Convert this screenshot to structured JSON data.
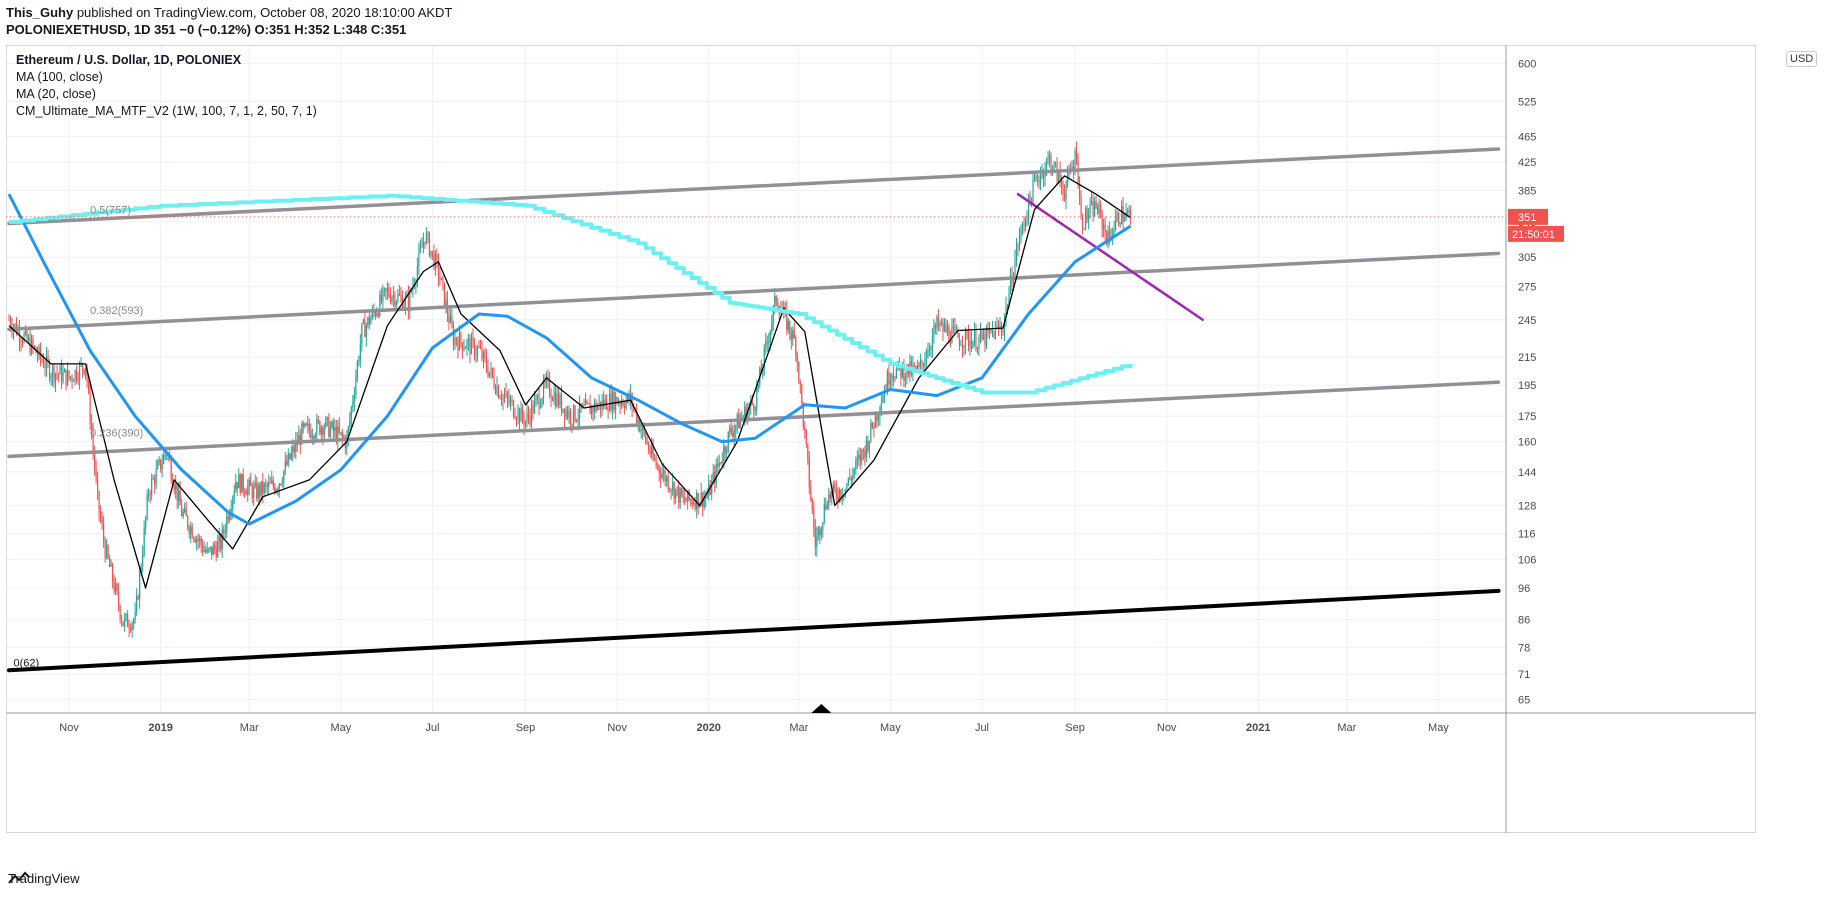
{
  "header": {
    "author": "This_Guhy",
    "published": "published on TradingView.com, October 08, 2020 18:10:00 AKDT",
    "symbol_line": "POLONIEXETHUSD, 1D",
    "ohlc": "351 −0 (−0.12%) O:351 H:352 L:348 C:351"
  },
  "legend": {
    "title": "Ethereum / U.S. Dollar, 1D, POLONIEX",
    "items": [
      "MA (100, close)",
      "MA (20, close)",
      "CM_Ultimate_MA_MTF_V2 (1W, 100, 7, 1, 2, 50, 7, 1)"
    ]
  },
  "currency_badge": "USD",
  "price_tag": {
    "value": "351",
    "countdown": "21:50:01",
    "color": "#ef5350"
  },
  "footer": {
    "brand": "TradingView"
  },
  "colors": {
    "up": "#26a69a",
    "down": "#ef5350",
    "ma100": "#2196f3",
    "ma20": "#000000",
    "mtf": "#6ff0f0",
    "channel": "#909096",
    "support": "#000000",
    "trendline": "#9c27b0"
  },
  "chart_data": {
    "type": "candlestick",
    "symbol": "ETHUSD",
    "interval": "1D",
    "exchange": "POLONIEX",
    "y_scale": "log",
    "ylim": [
      62,
      640
    ],
    "y_ticks": [
      65,
      71,
      78,
      86,
      96,
      106,
      116,
      128,
      144,
      160,
      175,
      195,
      215,
      245,
      275,
      305,
      345,
      385,
      425,
      465,
      525,
      600
    ],
    "x_ticks": [
      "Nov",
      "2019",
      "Mar",
      "May",
      "Jul",
      "Sep",
      "Nov",
      "2020",
      "Mar",
      "May",
      "Jul",
      "Sep",
      "Nov",
      "2021",
      "Mar",
      "May"
    ],
    "last_price": 351,
    "close_series": [
      {
        "date": "2018-09-22",
        "close": 245
      },
      {
        "date": "2018-10-05",
        "close": 226
      },
      {
        "date": "2018-10-20",
        "close": 205
      },
      {
        "date": "2018-11-01",
        "close": 200
      },
      {
        "date": "2018-11-12",
        "close": 210
      },
      {
        "date": "2018-11-20",
        "close": 130
      },
      {
        "date": "2018-11-25",
        "close": 110
      },
      {
        "date": "2018-12-07",
        "close": 85
      },
      {
        "date": "2018-12-15",
        "close": 86
      },
      {
        "date": "2018-12-24",
        "close": 135
      },
      {
        "date": "2019-01-05",
        "close": 155
      },
      {
        "date": "2019-01-15",
        "close": 125
      },
      {
        "date": "2019-02-01",
        "close": 108
      },
      {
        "date": "2019-02-10",
        "close": 112
      },
      {
        "date": "2019-02-20",
        "close": 140
      },
      {
        "date": "2019-03-05",
        "close": 134
      },
      {
        "date": "2019-03-20",
        "close": 138
      },
      {
        "date": "2019-04-05",
        "close": 165
      },
      {
        "date": "2019-04-20",
        "close": 170
      },
      {
        "date": "2019-05-05",
        "close": 160
      },
      {
        "date": "2019-05-15",
        "close": 235
      },
      {
        "date": "2019-06-01",
        "close": 270
      },
      {
        "date": "2019-06-15",
        "close": 260
      },
      {
        "date": "2019-06-26",
        "close": 330
      },
      {
        "date": "2019-07-05",
        "close": 290
      },
      {
        "date": "2019-07-15",
        "close": 230
      },
      {
        "date": "2019-08-01",
        "close": 220
      },
      {
        "date": "2019-08-15",
        "close": 190
      },
      {
        "date": "2019-09-01",
        "close": 172
      },
      {
        "date": "2019-09-15",
        "close": 195
      },
      {
        "date": "2019-10-01",
        "close": 175
      },
      {
        "date": "2019-10-15",
        "close": 180
      },
      {
        "date": "2019-10-28",
        "close": 185
      },
      {
        "date": "2019-11-10",
        "close": 185
      },
      {
        "date": "2019-11-25",
        "close": 150
      },
      {
        "date": "2019-12-15",
        "close": 130
      },
      {
        "date": "2019-12-31",
        "close": 132
      },
      {
        "date": "2020-01-15",
        "close": 165
      },
      {
        "date": "2020-02-01",
        "close": 185
      },
      {
        "date": "2020-02-15",
        "close": 265
      },
      {
        "date": "2020-02-28",
        "close": 225
      },
      {
        "date": "2020-03-12",
        "close": 112
      },
      {
        "date": "2020-03-20",
        "close": 132
      },
      {
        "date": "2020-04-01",
        "close": 136
      },
      {
        "date": "2020-04-15",
        "close": 158
      },
      {
        "date": "2020-05-01",
        "close": 205
      },
      {
        "date": "2020-05-20",
        "close": 205
      },
      {
        "date": "2020-06-01",
        "close": 240
      },
      {
        "date": "2020-06-15",
        "close": 230
      },
      {
        "date": "2020-07-01",
        "close": 228
      },
      {
        "date": "2020-07-15",
        "close": 240
      },
      {
        "date": "2020-07-25",
        "close": 320
      },
      {
        "date": "2020-08-05",
        "close": 395
      },
      {
        "date": "2020-08-15",
        "close": 430
      },
      {
        "date": "2020-08-25",
        "close": 385
      },
      {
        "date": "2020-09-02",
        "close": 440
      },
      {
        "date": "2020-09-05",
        "close": 345
      },
      {
        "date": "2020-09-15",
        "close": 365
      },
      {
        "date": "2020-09-23",
        "close": 325
      },
      {
        "date": "2020-10-01",
        "close": 355
      },
      {
        "date": "2020-10-08",
        "close": 351
      }
    ],
    "series": [
      {
        "name": "MA (20, close)",
        "color": "#000000",
        "points": [
          {
            "date": "2018-09-22",
            "close": 240
          },
          {
            "date": "2018-10-20",
            "close": 210
          },
          {
            "date": "2018-11-12",
            "close": 210
          },
          {
            "date": "2018-12-01",
            "close": 140
          },
          {
            "date": "2018-12-22",
            "close": 96
          },
          {
            "date": "2019-01-10",
            "close": 140
          },
          {
            "date": "2019-02-01",
            "close": 122
          },
          {
            "date": "2019-02-18",
            "close": 110
          },
          {
            "date": "2019-03-10",
            "close": 132
          },
          {
            "date": "2019-04-10",
            "close": 140
          },
          {
            "date": "2019-05-05",
            "close": 160
          },
          {
            "date": "2019-06-01",
            "close": 240
          },
          {
            "date": "2019-06-25",
            "close": 290
          },
          {
            "date": "2019-07-05",
            "close": 300
          },
          {
            "date": "2019-07-20",
            "close": 250
          },
          {
            "date": "2019-08-15",
            "close": 220
          },
          {
            "date": "2019-09-01",
            "close": 182
          },
          {
            "date": "2019-09-15",
            "close": 200
          },
          {
            "date": "2019-10-10",
            "close": 180
          },
          {
            "date": "2019-11-10",
            "close": 185
          },
          {
            "date": "2019-12-01",
            "close": 148
          },
          {
            "date": "2019-12-26",
            "close": 128
          },
          {
            "date": "2020-01-20",
            "close": 160
          },
          {
            "date": "2020-02-20",
            "close": 255
          },
          {
            "date": "2020-03-05",
            "close": 235
          },
          {
            "date": "2020-03-25",
            "close": 128
          },
          {
            "date": "2020-04-20",
            "close": 150
          },
          {
            "date": "2020-05-20",
            "close": 200
          },
          {
            "date": "2020-06-15",
            "close": 236
          },
          {
            "date": "2020-07-15",
            "close": 238
          },
          {
            "date": "2020-08-05",
            "close": 360
          },
          {
            "date": "2020-08-25",
            "close": 405
          },
          {
            "date": "2020-09-15",
            "close": 380
          },
          {
            "date": "2020-10-08",
            "close": 350
          }
        ]
      },
      {
        "name": "MA (100, close)",
        "color": "#2196f3",
        "points": [
          {
            "date": "2018-09-22",
            "close": 380
          },
          {
            "date": "2018-10-15",
            "close": 300
          },
          {
            "date": "2018-11-15",
            "close": 220
          },
          {
            "date": "2018-12-15",
            "close": 175
          },
          {
            "date": "2019-01-15",
            "close": 145
          },
          {
            "date": "2019-02-15",
            "close": 125
          },
          {
            "date": "2019-03-01",
            "close": 120
          },
          {
            "date": "2019-04-01",
            "close": 130
          },
          {
            "date": "2019-05-01",
            "close": 145
          },
          {
            "date": "2019-06-01",
            "close": 175
          },
          {
            "date": "2019-07-01",
            "close": 222
          },
          {
            "date": "2019-08-01",
            "close": 250
          },
          {
            "date": "2019-08-20",
            "close": 248
          },
          {
            "date": "2019-09-15",
            "close": 230
          },
          {
            "date": "2019-10-15",
            "close": 200
          },
          {
            "date": "2019-11-15",
            "close": 185
          },
          {
            "date": "2019-12-15",
            "close": 170
          },
          {
            "date": "2020-01-10",
            "close": 160
          },
          {
            "date": "2020-02-01",
            "close": 162
          },
          {
            "date": "2020-03-05",
            "close": 182
          },
          {
            "date": "2020-04-01",
            "close": 180
          },
          {
            "date": "2020-05-01",
            "close": 192
          },
          {
            "date": "2020-06-01",
            "close": 188
          },
          {
            "date": "2020-07-01",
            "close": 200
          },
          {
            "date": "2020-08-01",
            "close": 250
          },
          {
            "date": "2020-09-01",
            "close": 300
          },
          {
            "date": "2020-10-08",
            "close": 340
          }
        ]
      },
      {
        "name": "CM_Ultimate_MA_MTF_V2",
        "color": "#6ff0f0",
        "points": [
          {
            "date": "2018-09-22",
            "close": 345
          },
          {
            "date": "2019-01-01",
            "close": 365
          },
          {
            "date": "2019-06-01",
            "close": 378
          },
          {
            "date": "2019-09-01",
            "close": 365
          },
          {
            "date": "2019-11-15",
            "close": 320
          },
          {
            "date": "2020-01-15",
            "close": 260
          },
          {
            "date": "2020-03-01",
            "close": 250
          },
          {
            "date": "2020-05-01",
            "close": 210
          },
          {
            "date": "2020-07-01",
            "close": 190
          },
          {
            "date": "2020-08-01",
            "close": 190
          },
          {
            "date": "2020-10-08",
            "close": 210
          }
        ]
      }
    ],
    "annotations": [
      {
        "text": "0.5(757)",
        "date": "2018-11-15",
        "price": 355
      },
      {
        "text": "0.382(593)",
        "date": "2018-11-15",
        "price": 250
      },
      {
        "text": "0.236(390)",
        "date": "2018-11-15",
        "price": 163
      },
      {
        "text": "0(62)",
        "date": "2018-09-25",
        "price": 73
      }
    ],
    "drawn_lines": [
      {
        "name": "channel-upper",
        "color": "#909096",
        "from": {
          "date": "2018-09-22",
          "price": 343
        },
        "to": {
          "date": "2021-06-10",
          "price": 445
        }
      },
      {
        "name": "channel-mid",
        "color": "#909096",
        "from": {
          "date": "2018-09-22",
          "price": 237
        },
        "to": {
          "date": "2021-06-10",
          "price": 309
        }
      },
      {
        "name": "channel-lower",
        "color": "#909096",
        "from": {
          "date": "2018-09-22",
          "price": 152
        },
        "to": {
          "date": "2021-06-10",
          "price": 197
        }
      },
      {
        "name": "long-support",
        "color": "#000000",
        "from": {
          "date": "2018-09-22",
          "price": 72
        },
        "to": {
          "date": "2021-06-10",
          "price": 95
        }
      },
      {
        "name": "descending-trendline",
        "color": "#9c27b0",
        "from": {
          "date": "2020-07-25",
          "price": 380
        },
        "to": {
          "date": "2020-11-25",
          "price": 245
        }
      }
    ],
    "grid": true
  }
}
